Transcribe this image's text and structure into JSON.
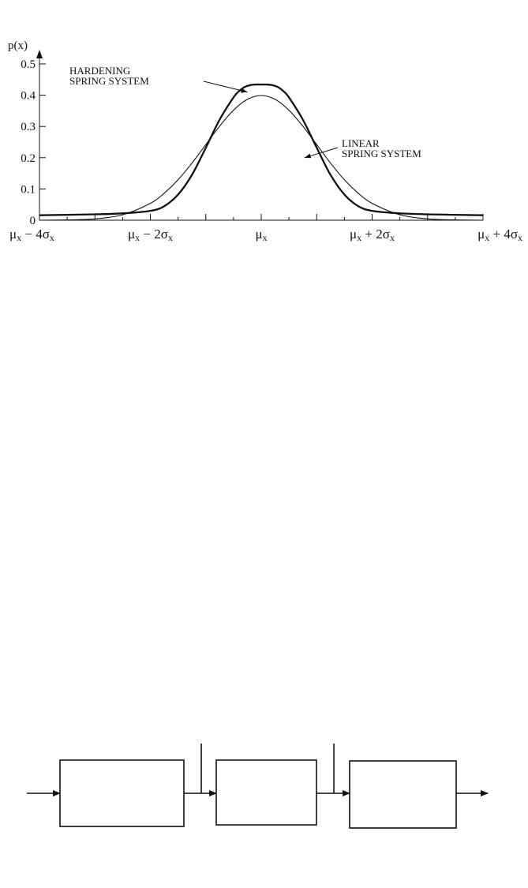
{
  "chart_data": {
    "type": "line",
    "ylabel": "p(x)",
    "xlabel": "",
    "ylim": [
      0,
      0.5
    ],
    "xlim": [
      -4,
      4
    ],
    "y_ticks": [
      0,
      0.1,
      0.2,
      0.3,
      0.4,
      0.5
    ],
    "y_tick_labels": [
      "0",
      "0.1",
      "0.2",
      "0.3",
      "0.4",
      "0.5"
    ],
    "x_ticks": [
      -4,
      -2,
      0,
      2,
      4
    ],
    "x_tick_labels": [
      {
        "mu": "μ",
        "sub1": "x",
        "rest": " − 4σ",
        "sub2": "x"
      },
      {
        "mu": "μ",
        "sub1": "x",
        "rest": " − 2σ",
        "sub2": "x"
      },
      {
        "mu": "μ",
        "sub1": "x",
        "rest": "",
        "sub2": ""
      },
      {
        "mu": "μ",
        "sub1": "x",
        "rest": " + 2σ",
        "sub2": "x"
      },
      {
        "mu": "μ",
        "sub1": "x",
        "rest": " + 4σ",
        "sub2": "x"
      }
    ],
    "grid": false,
    "series": [
      {
        "line_style": "thin",
        "x": [
          -4,
          -3.5,
          -3,
          -2.5,
          -2,
          -1.75,
          -1.5,
          -1.25,
          -1,
          -0.75,
          -0.5,
          -0.25,
          0,
          0.25,
          0.5,
          0.75,
          1,
          1.25,
          1.5,
          1.75,
          2,
          2.5,
          3,
          3.5,
          4
        ],
        "y": [
          0.0001,
          0.0009,
          0.0044,
          0.0175,
          0.054,
          0.0863,
          0.1295,
          0.1826,
          0.242,
          0.3011,
          0.3521,
          0.3867,
          0.3989,
          0.3867,
          0.3521,
          0.3011,
          0.242,
          0.1826,
          0.1295,
          0.0863,
          0.054,
          0.0175,
          0.0044,
          0.0009,
          0.0001
        ]
      },
      {
        "line_style": "thick",
        "x": [
          -4,
          -3,
          -2.5,
          -2,
          -1.75,
          -1.5,
          -1.25,
          -1,
          -0.75,
          -0.5,
          -0.4,
          -0.3,
          -0.2,
          -0.1,
          0,
          0.1,
          0.2,
          0.3,
          0.4,
          0.5,
          0.75,
          1,
          1.25,
          1.5,
          1.75,
          2,
          2.5,
          3,
          4
        ],
        "y": [
          0.016,
          0.019,
          0.022,
          0.03,
          0.045,
          0.082,
          0.145,
          0.232,
          0.322,
          0.393,
          0.413,
          0.426,
          0.432,
          0.434,
          0.434,
          0.434,
          0.432,
          0.426,
          0.413,
          0.393,
          0.322,
          0.232,
          0.145,
          0.082,
          0.045,
          0.03,
          0.022,
          0.019,
          0.016
        ]
      }
    ],
    "annotations": [
      {
        "lines": [
          "HARDENING",
          "SPRING SYSTEM"
        ],
        "arrow_to": {
          "x": -0.25,
          "y": 0.41
        }
      },
      {
        "lines": [
          "LINEAR",
          "SPRING SYSTEM"
        ],
        "arrow_to": {
          "x": 0.78,
          "y": 0.2
        }
      }
    ]
  },
  "block_diagram": {
    "blocks": [
      "",
      "",
      ""
    ],
    "labels": []
  }
}
